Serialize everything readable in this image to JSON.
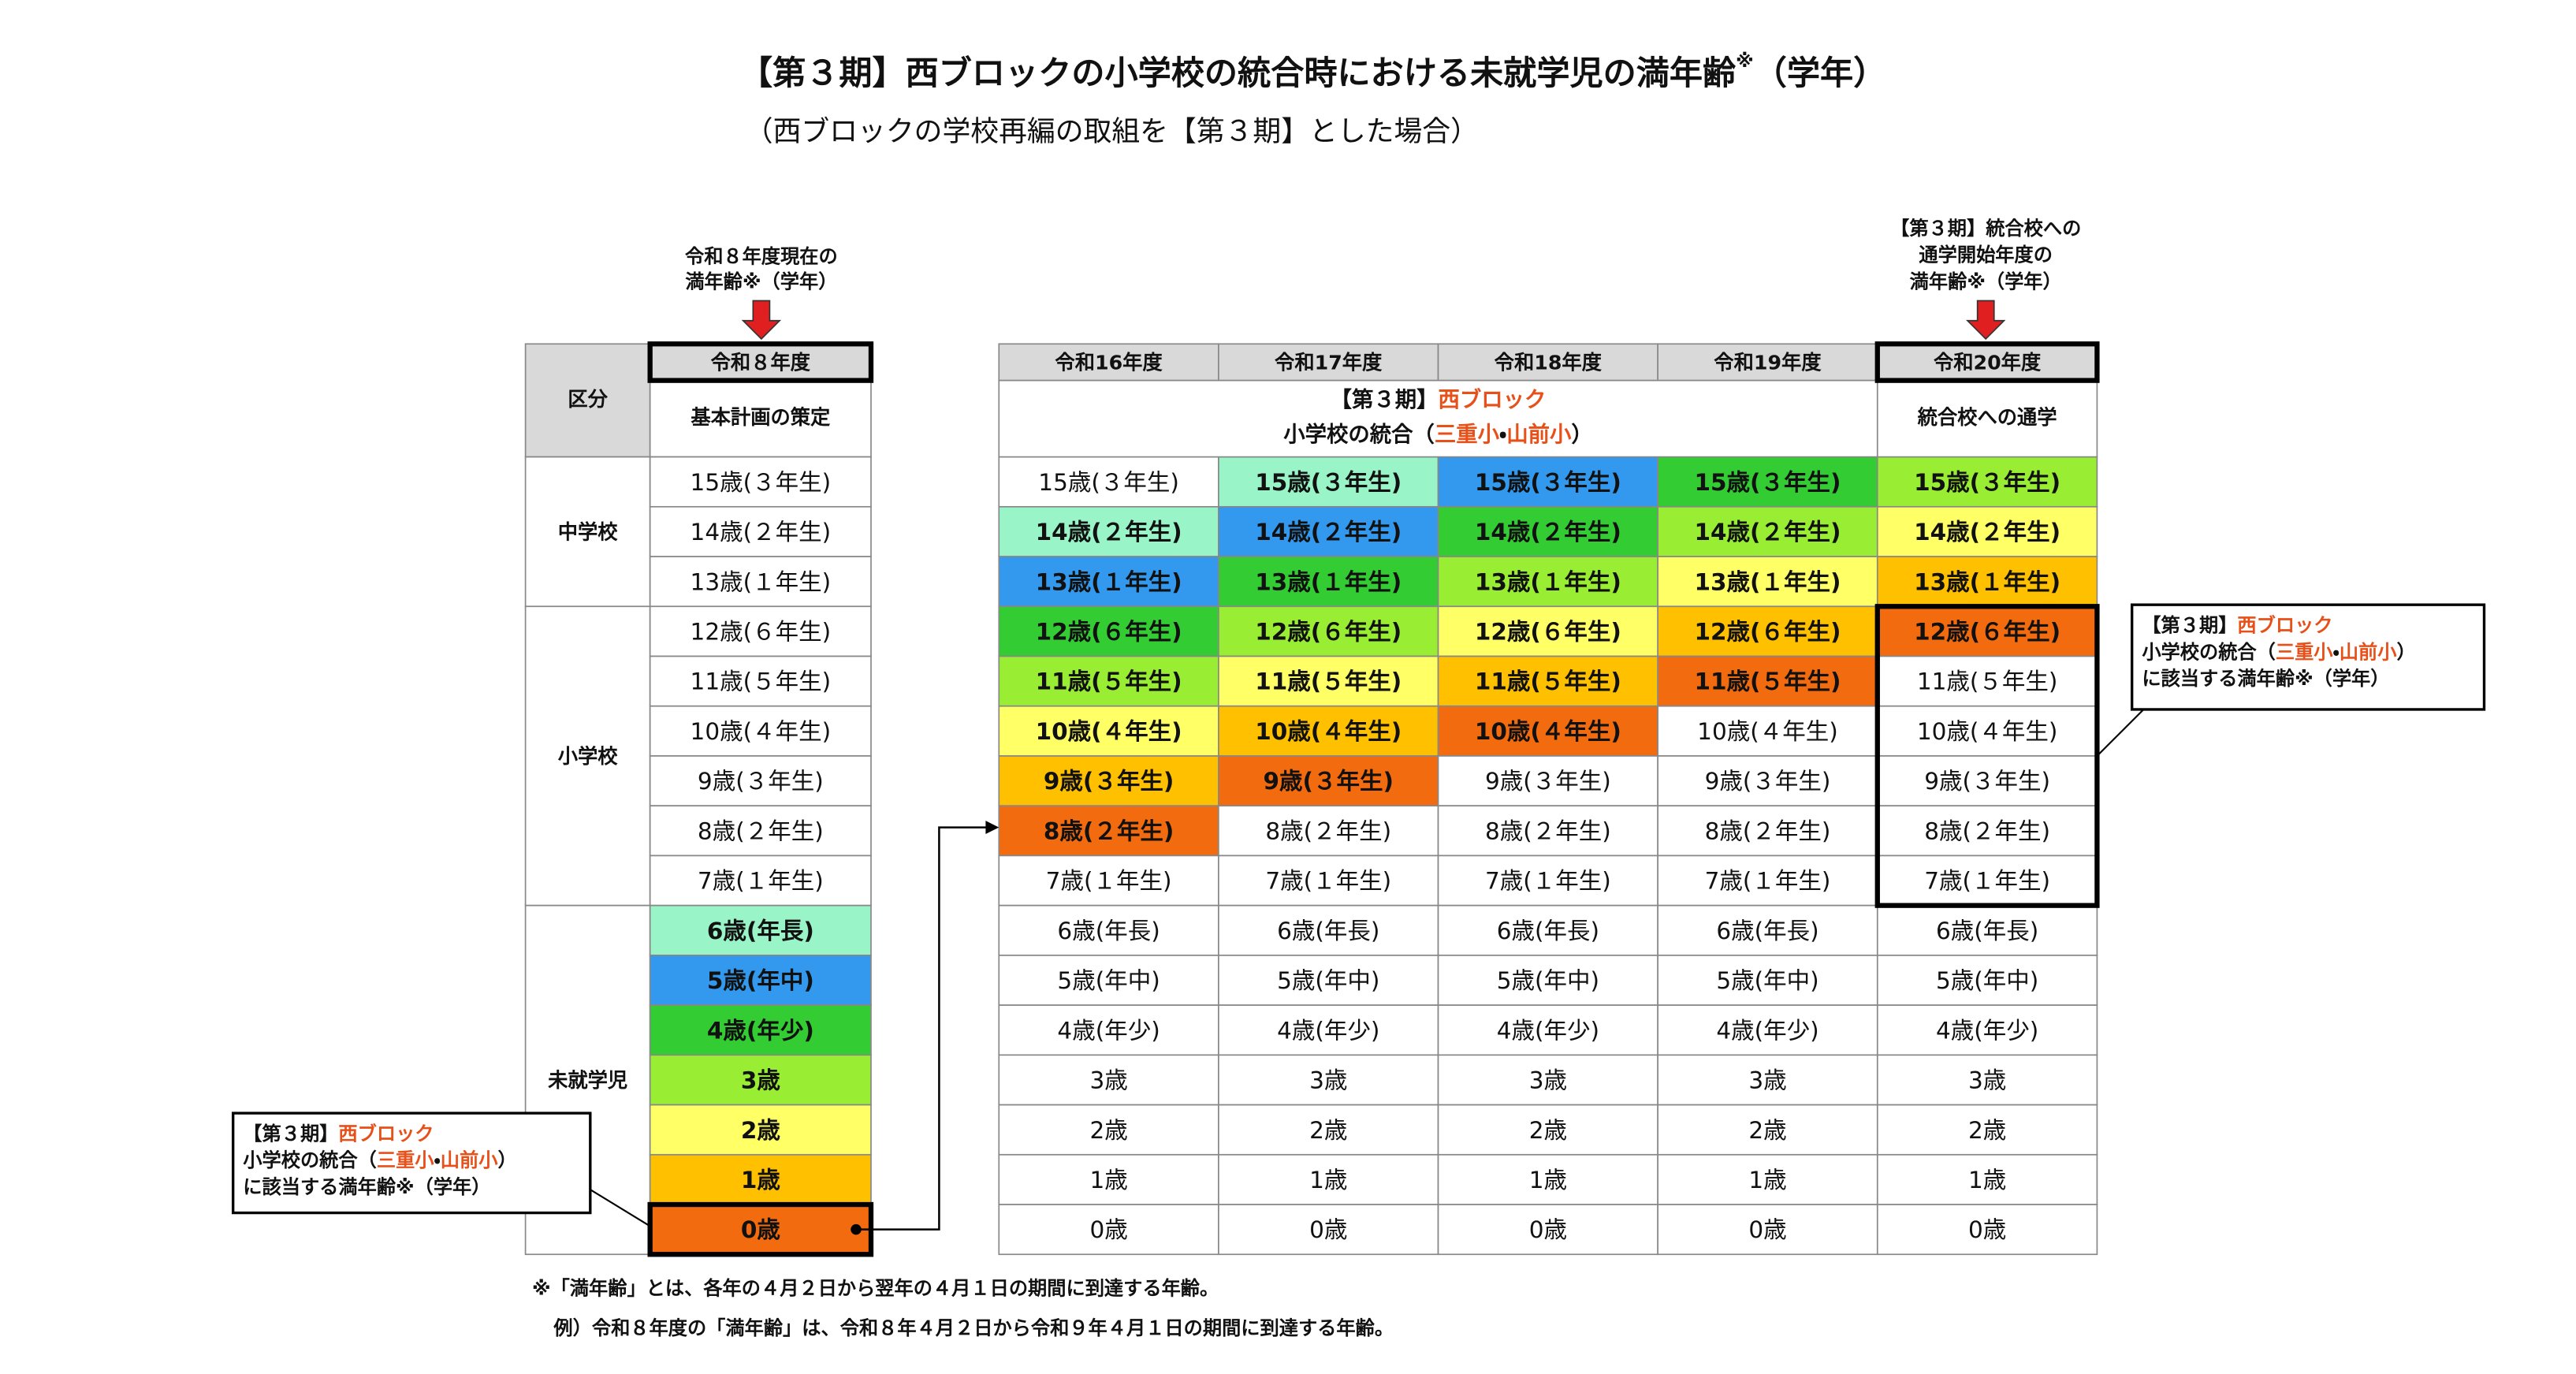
{
  "title": {
    "main": "【第３期】西ブロックの小学校の統合時における未就学児の満年齢",
    "mark": "※",
    "suffix": "（学年）"
  },
  "subtitle": "（西ブロックの学校再編の取組を【第３期】とした場合）",
  "left_note": [
    "令和８年度現在の",
    "満年齢※（学年）"
  ],
  "right_note": [
    "【第３期】統合校への",
    "通学開始年度の",
    "満年齢※（学年）"
  ],
  "left_table": {
    "category_header": "区分",
    "groups": [
      "中学校",
      "小学校",
      "未就学児"
    ],
    "column": {
      "year": "令和８年度",
      "plan": "基本計画の策定",
      "cells": [
        "15歳(３年生)",
        "14歳(２年生)",
        "13歳(１年生)",
        "12歳(６年生)",
        "11歳(５年生)",
        "10歳(４年生)",
        "9歳(３年生)",
        "8歳(２年生)",
        "7歳(１年生)",
        "6歳(年長)",
        "5歳(年中)",
        "4歳(年少)",
        "3歳",
        "2歳",
        "1歳",
        "0歳"
      ],
      "colors": [
        null,
        null,
        null,
        null,
        null,
        null,
        null,
        null,
        null,
        "#99f5c8",
        "#3399ee",
        "#33cc33",
        "#99ee33",
        "#ffff66",
        "#ffc000",
        "#f26b0f"
      ]
    }
  },
  "right_table": {
    "integration_header": [
      [
        "【第３期】",
        {
          "text": "西ブロック",
          "color": "#e8501a"
        }
      ],
      [
        "小学校の統合（",
        {
          "text": "三重小",
          "color": "#e8501a"
        },
        "・",
        {
          "text": "山前小",
          "color": "#e8501a"
        },
        "）"
      ]
    ],
    "commute_header": "統合校への通学",
    "columns": [
      {
        "year": "令和16年度",
        "cells": [
          "15歳(３年生)",
          "14歳(２年生)",
          "13歳(１年生)",
          "12歳(６年生)",
          "11歳(５年生)",
          "10歳(４年生)",
          "9歳(３年生)",
          "8歳(２年生)",
          "7歳(１年生)",
          "6歳(年長)",
          "5歳(年中)",
          "4歳(年少)",
          "3歳",
          "2歳",
          "1歳",
          "0歳"
        ],
        "colors": [
          null,
          "#99f5c8",
          "#3399ee",
          "#33cc33",
          "#99ee33",
          "#ffff66",
          "#ffc000",
          "#f26b0f",
          null,
          null,
          null,
          null,
          null,
          null,
          null,
          null
        ]
      },
      {
        "year": "令和17年度",
        "cells": [
          "15歳(３年生)",
          "14歳(２年生)",
          "13歳(１年生)",
          "12歳(６年生)",
          "11歳(５年生)",
          "10歳(４年生)",
          "9歳(３年生)",
          "8歳(２年生)",
          "7歳(１年生)",
          "6歳(年長)",
          "5歳(年中)",
          "4歳(年少)",
          "3歳",
          "2歳",
          "1歳",
          "0歳"
        ],
        "colors": [
          "#99f5c8",
          "#3399ee",
          "#33cc33",
          "#99ee33",
          "#ffff66",
          "#ffc000",
          "#f26b0f",
          null,
          null,
          null,
          null,
          null,
          null,
          null,
          null,
          null
        ]
      },
      {
        "year": "令和18年度",
        "cells": [
          "15歳(３年生)",
          "14歳(２年生)",
          "13歳(１年生)",
          "12歳(６年生)",
          "11歳(５年生)",
          "10歳(４年生)",
          "9歳(３年生)",
          "8歳(２年生)",
          "7歳(１年生)",
          "6歳(年長)",
          "5歳(年中)",
          "4歳(年少)",
          "3歳",
          "2歳",
          "1歳",
          "0歳"
        ],
        "colors": [
          "#3399ee",
          "#33cc33",
          "#99ee33",
          "#ffff66",
          "#ffc000",
          "#f26b0f",
          null,
          null,
          null,
          null,
          null,
          null,
          null,
          null,
          null,
          null
        ]
      },
      {
        "year": "令和19年度",
        "cells": [
          "15歳(３年生)",
          "14歳(２年生)",
          "13歳(１年生)",
          "12歳(６年生)",
          "11歳(５年生)",
          "10歳(４年生)",
          "9歳(３年生)",
          "8歳(２年生)",
          "7歳(１年生)",
          "6歳(年長)",
          "5歳(年中)",
          "4歳(年少)",
          "3歳",
          "2歳",
          "1歳",
          "0歳"
        ],
        "colors": [
          "#33cc33",
          "#99ee33",
          "#ffff66",
          "#ffc000",
          "#f26b0f",
          null,
          null,
          null,
          null,
          null,
          null,
          null,
          null,
          null,
          null,
          null
        ]
      },
      {
        "year": "令和20年度",
        "cells": [
          "15歳(３年生)",
          "14歳(２年生)",
          "13歳(１年生)",
          "12歳(６年生)",
          "11歳(５年生)",
          "10歳(４年生)",
          "9歳(３年生)",
          "8歳(２年生)",
          "7歳(１年生)",
          "6歳(年長)",
          "5歳(年中)",
          "4歳(年少)",
          "3歳",
          "2歳",
          "1歳",
          "0歳"
        ],
        "colors": [
          "#99ee33",
          "#ffff66",
          "#ffc000",
          "#f26b0f",
          null,
          null,
          null,
          null,
          null,
          null,
          null,
          null,
          null,
          null,
          null,
          null
        ]
      }
    ]
  },
  "right_callout": [
    [
      "【第３期】",
      {
        "text": "西ブロック",
        "color": "#e8501a"
      }
    ],
    [
      "小学校の統合（",
      {
        "text": "三重小",
        "color": "#e8501a"
      },
      "・",
      {
        "text": "山前小",
        "color": "#e8501a"
      },
      "）"
    ],
    [
      "に該当する満年齢※（学年）"
    ]
  ],
  "left_callout": [
    [
      "【第３期】",
      {
        "text": "西ブロック",
        "color": "#e8501a"
      }
    ],
    [
      "小学校の統合（",
      {
        "text": "三重小",
        "color": "#e8501a"
      },
      "・",
      {
        "text": "山前小",
        "color": "#e8501a"
      },
      "）"
    ],
    [
      "に該当する満年齢※（学年）"
    ]
  ],
  "footnotes": [
    "※「満年齢」とは、各年の４月２日から翌年の４月１日の期間に到達する年齢。",
    "例）令和８年度の「満年齢」は、令和８年４月２日から令和９年４月１日の期間に到達する年齢。"
  ]
}
